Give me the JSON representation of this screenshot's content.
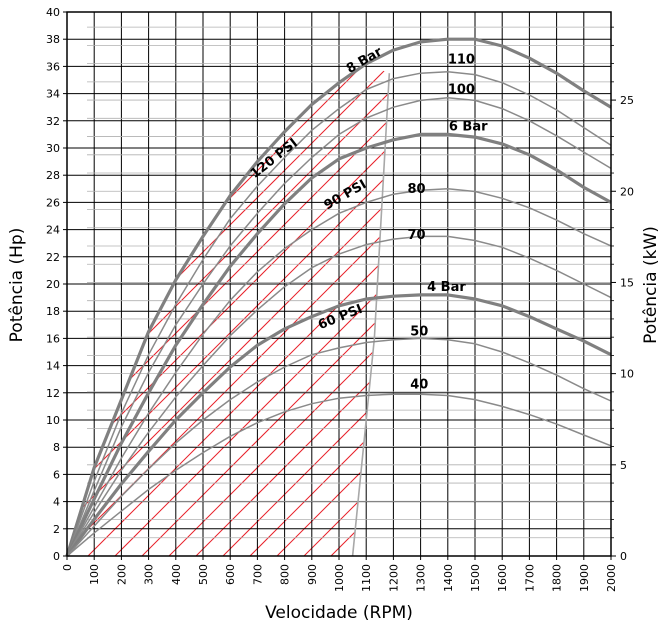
{
  "chart_data": {
    "type": "line",
    "title": "",
    "xlabel": "Velocidade (RPM)",
    "ylabel": "Potência (Hp)",
    "y2label": "Potência (kW)",
    "xlim": [
      0,
      2000
    ],
    "ylim": [
      0,
      40
    ],
    "y2lim": [
      0,
      29.83
    ],
    "x_ticks": [
      "0",
      "100",
      "200",
      "300",
      "400",
      "500",
      "600",
      "700",
      "800",
      "900",
      "1000",
      "1100",
      "1200",
      "1300",
      "1400",
      "1500",
      "1600",
      "1700",
      "1800",
      "1900",
      "2000"
    ],
    "y_ticks": [
      "0",
      "2",
      "4",
      "6",
      "8",
      "10",
      "12",
      "14",
      "16",
      "18",
      "20",
      "22",
      "24",
      "26",
      "28",
      "30",
      "32",
      "34",
      "36",
      "38",
      "40"
    ],
    "y2_ticks": [
      "0",
      "5",
      "10",
      "15",
      "20",
      "25"
    ],
    "grid": true,
    "hatched_region": {
      "description_free": true,
      "boundary_x": [
        1050,
        1130,
        1185
      ],
      "boundary_y": [
        0,
        16,
        35.5
      ],
      "color": "#e8202a"
    },
    "series": [
      {
        "name": "120 PSI / 8 Bar",
        "label": "120 PSI",
        "label2": "8 Bar",
        "heavy": true,
        "x": [
          0,
          100,
          200,
          300,
          400,
          500,
          600,
          700,
          800,
          900,
          1000,
          1100,
          1200,
          1300,
          1400,
          1500,
          1600,
          1700,
          1800,
          1900,
          2000
        ],
        "y": [
          0,
          6.5,
          11.5,
          16.5,
          20.3,
          23.5,
          26.5,
          29.0,
          31.2,
          33.2,
          34.8,
          36.2,
          37.2,
          37.8,
          38.0,
          38.0,
          37.5,
          36.6,
          35.5,
          34.2,
          33.0
        ]
      },
      {
        "name": "110",
        "label": "110",
        "heavy": false,
        "x": [
          0,
          100,
          200,
          300,
          400,
          500,
          600,
          700,
          800,
          900,
          1000,
          1100,
          1200,
          1300,
          1400,
          1500,
          1600,
          1700,
          1800,
          1900,
          2000
        ],
        "y": [
          0,
          5.5,
          10.5,
          14.8,
          18.5,
          21.8,
          24.8,
          27.2,
          29.3,
          31.3,
          32.9,
          34.3,
          35.1,
          35.5,
          35.6,
          35.4,
          34.8,
          33.9,
          32.8,
          31.5,
          30.2
        ]
      },
      {
        "name": "100",
        "label": "100",
        "heavy": false,
        "x": [
          0,
          100,
          200,
          300,
          400,
          500,
          600,
          700,
          800,
          900,
          1000,
          1100,
          1200,
          1300,
          1400,
          1500,
          1600,
          1700,
          1800,
          1900,
          2000
        ],
        "y": [
          0,
          4.8,
          9.5,
          13.5,
          17.0,
          20.0,
          22.8,
          25.2,
          27.4,
          29.3,
          31.0,
          32.2,
          33.0,
          33.5,
          33.7,
          33.5,
          32.9,
          32.0,
          30.9,
          29.7,
          28.5
        ]
      },
      {
        "name": "90 PSI / 6 Bar",
        "label": "90 PSI",
        "label2": "6 Bar",
        "heavy": true,
        "x": [
          0,
          100,
          200,
          300,
          400,
          500,
          600,
          700,
          800,
          900,
          1000,
          1100,
          1200,
          1300,
          1400,
          1500,
          1600,
          1700,
          1800,
          1900,
          2000
        ],
        "y": [
          0,
          4.2,
          8.3,
          12.0,
          15.5,
          18.5,
          21.3,
          23.7,
          25.9,
          27.8,
          29.2,
          30.0,
          30.6,
          31.0,
          31.0,
          30.8,
          30.3,
          29.5,
          28.4,
          27.1,
          26.0
        ]
      },
      {
        "name": "80",
        "label": "80",
        "heavy": false,
        "x": [
          0,
          100,
          200,
          300,
          400,
          500,
          600,
          700,
          800,
          900,
          1000,
          1100,
          1200,
          1300,
          1400,
          1500,
          1600,
          1700,
          1800,
          1900,
          2000
        ],
        "y": [
          0,
          3.6,
          7.2,
          10.5,
          13.5,
          16.3,
          18.8,
          20.9,
          22.6,
          24.0,
          25.2,
          26.0,
          26.6,
          26.9,
          27.0,
          26.8,
          26.3,
          25.6,
          24.7,
          23.7,
          22.8
        ]
      },
      {
        "name": "70",
        "label": "70",
        "heavy": false,
        "x": [
          0,
          100,
          200,
          300,
          400,
          500,
          600,
          700,
          800,
          900,
          1000,
          1100,
          1200,
          1300,
          1400,
          1500,
          1600,
          1700,
          1800,
          1900,
          2000
        ],
        "y": [
          0,
          3.2,
          6.3,
          9.1,
          11.7,
          14.0,
          16.2,
          18.1,
          19.8,
          21.2,
          22.2,
          22.9,
          23.3,
          23.5,
          23.5,
          23.2,
          22.7,
          21.9,
          21.0,
          20.0,
          19.0
        ]
      },
      {
        "name": "60 PSI / 4 Bar",
        "label": "60 PSI",
        "label2": "4 Bar",
        "heavy": true,
        "x": [
          0,
          100,
          200,
          300,
          400,
          500,
          600,
          700,
          800,
          900,
          1000,
          1100,
          1200,
          1300,
          1400,
          1500,
          1600,
          1700,
          1800,
          1900,
          2000
        ],
        "y": [
          0,
          2.7,
          5.3,
          7.7,
          10.0,
          12.0,
          13.9,
          15.5,
          16.7,
          17.6,
          18.4,
          18.9,
          19.1,
          19.2,
          19.2,
          18.9,
          18.4,
          17.6,
          16.7,
          15.8,
          14.8
        ]
      },
      {
        "name": "50",
        "label": "50",
        "heavy": false,
        "x": [
          0,
          100,
          200,
          300,
          400,
          500,
          600,
          700,
          800,
          900,
          1000,
          1100,
          1200,
          1300,
          1400,
          1500,
          1600,
          1700,
          1800,
          1900,
          2000
        ],
        "y": [
          0,
          2.2,
          4.4,
          6.4,
          8.3,
          10.0,
          11.5,
          12.8,
          13.9,
          14.8,
          15.3,
          15.7,
          15.9,
          16.0,
          15.9,
          15.6,
          15.0,
          14.2,
          13.3,
          12.3,
          11.4
        ]
      },
      {
        "name": "40",
        "label": "40",
        "heavy": false,
        "x": [
          0,
          100,
          200,
          300,
          400,
          500,
          600,
          700,
          800,
          900,
          1000,
          1100,
          1200,
          1300,
          1400,
          1500,
          1600,
          1700,
          1800,
          1900,
          2000
        ],
        "y": [
          0,
          1.7,
          3.3,
          4.9,
          6.3,
          7.6,
          8.8,
          9.8,
          10.6,
          11.2,
          11.6,
          11.8,
          11.9,
          11.9,
          11.8,
          11.5,
          11.0,
          10.4,
          9.7,
          8.9,
          8.1
        ]
      }
    ],
    "curve_labels": [
      {
        "text": "8 Bar",
        "x": 1100,
        "y": 36.2,
        "rotate": -30
      },
      {
        "text": "110",
        "x": 1450,
        "y": 36.2,
        "rotate": 0
      },
      {
        "text": "100",
        "x": 1450,
        "y": 34.0,
        "rotate": 0
      },
      {
        "text": "6 Bar",
        "x": 1475,
        "y": 31.3,
        "rotate": 0
      },
      {
        "text": "120 PSI",
        "x": 770,
        "y": 29.0,
        "rotate": -38
      },
      {
        "text": "90 PSI",
        "x": 1030,
        "y": 26.3,
        "rotate": -30
      },
      {
        "text": "80",
        "x": 1285,
        "y": 26.7,
        "rotate": 0
      },
      {
        "text": "70",
        "x": 1285,
        "y": 23.3,
        "rotate": 0
      },
      {
        "text": "4 Bar",
        "x": 1395,
        "y": 19.5,
        "rotate": 0
      },
      {
        "text": "60 PSI",
        "x": 1010,
        "y": 17.3,
        "rotate": -22
      },
      {
        "text": "50",
        "x": 1295,
        "y": 16.2,
        "rotate": 0
      },
      {
        "text": "40",
        "x": 1295,
        "y": 12.3,
        "rotate": 0
      }
    ],
    "colors": {
      "heavy": "#808080",
      "light": "#8a8a8a",
      "grid_major": "#000000",
      "grid_minor": "#b0b0b0",
      "hatch": "#e8202a",
      "boundary": "#a8a8a8"
    }
  }
}
